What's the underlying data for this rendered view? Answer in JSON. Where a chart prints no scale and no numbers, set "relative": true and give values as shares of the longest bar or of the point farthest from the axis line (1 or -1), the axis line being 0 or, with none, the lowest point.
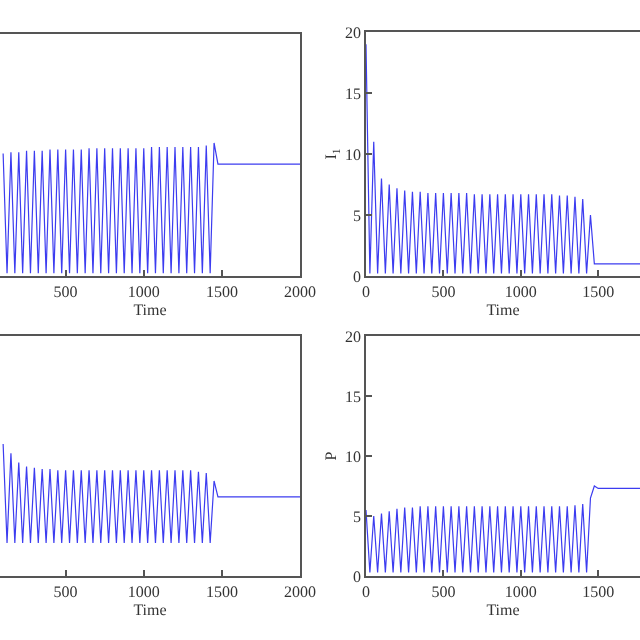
{
  "chart_data": [
    {
      "type": "line",
      "relative": true,
      "xlabel": "Time",
      "xlim": [
        80,
        2000
      ],
      "xticks": [
        500,
        1000,
        1500,
        2000
      ],
      "x": [
        100,
        125,
        150,
        175,
        200,
        225,
        250,
        275,
        300,
        325,
        350,
        375,
        400,
        425,
        450,
        475,
        500,
        525,
        550,
        575,
        600,
        625,
        650,
        675,
        700,
        725,
        750,
        775,
        800,
        825,
        850,
        875,
        900,
        925,
        950,
        975,
        1000,
        1025,
        1050,
        1075,
        1100,
        1125,
        1150,
        1175,
        1200,
        1225,
        1250,
        1275,
        1300,
        1325,
        1350,
        1375,
        1400,
        1425,
        1450,
        1475,
        2000
      ],
      "series": [
        {
          "color": "#3c3cf0",
          "values": [
            0.92,
            0.02,
            0.93,
            0.02,
            0.93,
            0.02,
            0.94,
            0.02,
            0.94,
            0.02,
            0.94,
            0.02,
            0.95,
            0.02,
            0.95,
            0.02,
            0.95,
            0.02,
            0.95,
            0.02,
            0.95,
            0.02,
            0.96,
            0.02,
            0.96,
            0.02,
            0.96,
            0.02,
            0.96,
            0.02,
            0.96,
            0.02,
            0.96,
            0.02,
            0.96,
            0.02,
            0.96,
            0.02,
            0.97,
            0.02,
            0.97,
            0.02,
            0.97,
            0.02,
            0.97,
            0.02,
            0.97,
            0.02,
            0.97,
            0.02,
            0.97,
            0.02,
            0.98,
            0.02,
            1.0,
            0.84,
            0.84
          ]
        }
      ]
    },
    {
      "type": "line",
      "xlabel": "Time",
      "ylabel": "I$_{1}$",
      "xlim": [
        0,
        1770
      ],
      "ylim": [
        0,
        20
      ],
      "xticks": [
        0,
        500,
        1000,
        1500
      ],
      "yticks": [
        0,
        5,
        10,
        15,
        20
      ],
      "x": [
        0,
        25,
        50,
        75,
        100,
        125,
        150,
        175,
        200,
        225,
        250,
        275,
        300,
        325,
        350,
        375,
        400,
        425,
        450,
        475,
        500,
        525,
        550,
        575,
        600,
        625,
        650,
        675,
        700,
        725,
        750,
        775,
        800,
        825,
        850,
        875,
        900,
        925,
        950,
        975,
        1000,
        1025,
        1050,
        1075,
        1100,
        1125,
        1150,
        1175,
        1200,
        1225,
        1250,
        1275,
        1300,
        1325,
        1350,
        1375,
        1400,
        1425,
        1450,
        1475,
        1770
      ],
      "series": [
        {
          "color": "#3c3cf0",
          "values": [
            19,
            0.2,
            11,
            0.2,
            8,
            0.2,
            7.5,
            0.2,
            7.2,
            0.2,
            7,
            0.2,
            6.9,
            0.2,
            6.9,
            0.2,
            6.8,
            0.2,
            6.8,
            0.2,
            6.8,
            0.2,
            6.8,
            0.2,
            6.8,
            0.2,
            6.8,
            0.2,
            6.7,
            0.2,
            6.7,
            0.2,
            6.7,
            0.2,
            6.7,
            0.2,
            6.7,
            0.2,
            6.7,
            0.2,
            6.7,
            0.2,
            6.7,
            0.2,
            6.7,
            0.2,
            6.7,
            0.2,
            6.7,
            0.2,
            6.6,
            0.2,
            6.6,
            0.2,
            6.5,
            0.2,
            6.3,
            0.2,
            5,
            1,
            1
          ]
        }
      ]
    },
    {
      "type": "line",
      "relative": true,
      "xlabel": "Time",
      "xlim": [
        80,
        2000
      ],
      "xticks": [
        500,
        1000,
        1500,
        2000
      ],
      "x": [
        100,
        125,
        150,
        175,
        200,
        225,
        250,
        275,
        300,
        325,
        350,
        375,
        400,
        425,
        450,
        475,
        500,
        525,
        550,
        575,
        600,
        625,
        650,
        675,
        700,
        725,
        750,
        775,
        800,
        825,
        850,
        875,
        900,
        925,
        950,
        975,
        1000,
        1025,
        1050,
        1075,
        1100,
        1125,
        1150,
        1175,
        1200,
        1225,
        1250,
        1275,
        1300,
        1325,
        1350,
        1375,
        1400,
        1425,
        1450,
        1475,
        2000
      ],
      "series": [
        {
          "color": "#3c3cf0",
          "values": [
            1.0,
            0.25,
            0.93,
            0.25,
            0.86,
            0.25,
            0.83,
            0.25,
            0.82,
            0.25,
            0.81,
            0.25,
            0.81,
            0.25,
            0.8,
            0.25,
            0.8,
            0.25,
            0.8,
            0.25,
            0.8,
            0.25,
            0.8,
            0.25,
            0.8,
            0.25,
            0.8,
            0.25,
            0.8,
            0.25,
            0.8,
            0.25,
            0.8,
            0.25,
            0.8,
            0.25,
            0.8,
            0.25,
            0.8,
            0.25,
            0.8,
            0.25,
            0.8,
            0.25,
            0.8,
            0.25,
            0.8,
            0.25,
            0.8,
            0.25,
            0.79,
            0.25,
            0.78,
            0.25,
            0.72,
            0.6,
            0.6
          ]
        }
      ]
    },
    {
      "type": "line",
      "xlabel": "Time",
      "ylabel": "P",
      "xlim": [
        0,
        1770
      ],
      "ylim": [
        0,
        20
      ],
      "xticks": [
        0,
        500,
        1000,
        1500
      ],
      "yticks": [
        0,
        5,
        10,
        15,
        20
      ],
      "x": [
        0,
        25,
        50,
        75,
        100,
        125,
        150,
        175,
        200,
        225,
        250,
        275,
        300,
        325,
        350,
        375,
        400,
        425,
        450,
        475,
        500,
        525,
        550,
        575,
        600,
        625,
        650,
        675,
        700,
        725,
        750,
        775,
        800,
        825,
        850,
        875,
        900,
        925,
        950,
        975,
        1000,
        1025,
        1050,
        1075,
        1100,
        1125,
        1150,
        1175,
        1200,
        1225,
        1250,
        1275,
        1300,
        1325,
        1350,
        1375,
        1400,
        1425,
        1450,
        1475,
        1500,
        1770
      ],
      "series": [
        {
          "color": "#3c3cf0",
          "values": [
            5.5,
            0.3,
            5,
            0.3,
            5.2,
            0.3,
            5.4,
            0.3,
            5.6,
            0.3,
            5.7,
            0.3,
            5.7,
            0.3,
            5.8,
            0.3,
            5.8,
            0.3,
            5.8,
            0.3,
            5.8,
            0.3,
            5.8,
            0.3,
            5.8,
            0.3,
            5.8,
            0.3,
            5.8,
            0.3,
            5.8,
            0.3,
            5.8,
            0.3,
            5.8,
            0.3,
            5.8,
            0.3,
            5.8,
            0.3,
            5.8,
            0.3,
            5.8,
            0.3,
            5.8,
            0.3,
            5.8,
            0.3,
            5.8,
            0.3,
            5.8,
            0.3,
            5.8,
            0.3,
            5.9,
            0.3,
            6,
            0.3,
            6.5,
            7.5,
            7.3,
            7.3
          ]
        }
      ]
    }
  ]
}
